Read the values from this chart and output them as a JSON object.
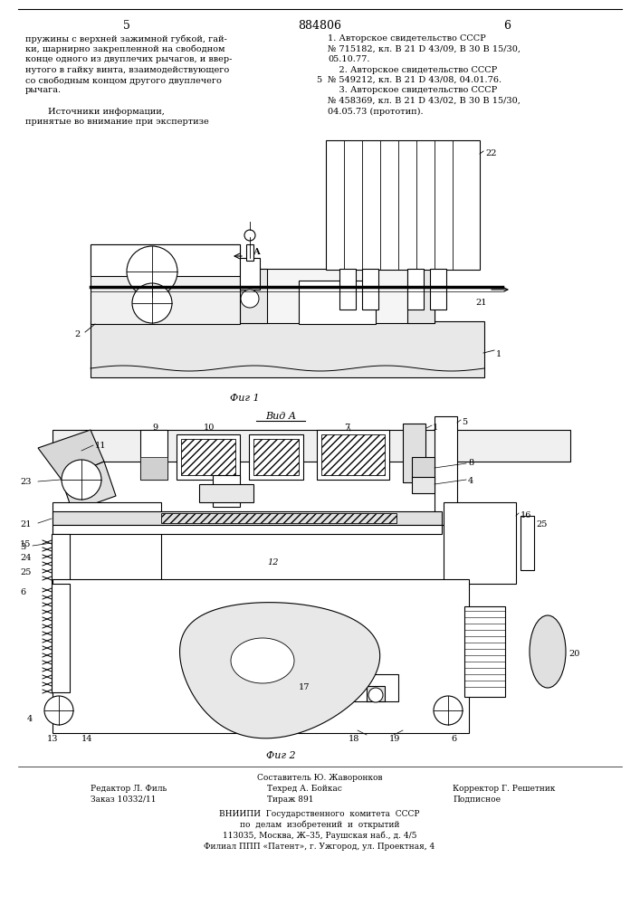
{
  "page_number_left": "5",
  "page_number_right": "6",
  "patent_number": "884806",
  "bg_color": "#ffffff",
  "text_color": "#000000",
  "left_col_text": [
    "пружины с верхней зажимной губкой, гай-",
    "ки, шарнирно закрепленной на свободном",
    "конце одного из двуплечих рычагов, и ввер-",
    "нутого в гайку винта, взаимодействующего",
    "со свободным концом другого двуплечего",
    "рычага.",
    "",
    "        Источники информации,",
    "принятые во внимание при экспертизе"
  ],
  "right_col_text": [
    "1. Авторское свидетельство СССР",
    "№ 715182, кл. В 21 D 43/09, В 30 В 15/30,",
    "05.10.77.",
    "    2. Авторское свидетельство СССР",
    "№ 549212, кл. В 21 D 43/08, 04.01.76.",
    "    3. Авторское свидетельство СССР",
    "№ 458369, кл. В 21 D 43/02, В 30 В 15/30,",
    "04.05.73 (прототип)."
  ],
  "line_number_5": "5",
  "fig1_label": "Фиг 1",
  "fig2_label": "Фиг 2",
  "vid_a_label": "Вид А",
  "footer_line1_left": "Редактор Л. Филь",
  "footer_line1_center": "Техред А. Бойкас",
  "footer_line1_right": "Корректор Г. Решетник",
  "footer_line0_center": "Составитель Ю. Жаворонков",
  "footer_line2_left": "Заказ 10332/11",
  "footer_line2_center": "Тираж 891",
  "footer_line2_right": "Подписное",
  "footer_vniip1": "ВНИИПИ  Государственного  комитета  СССР",
  "footer_vniip2": "по  делам  изобретений  и  открытий",
  "footer_vniip3": "113035, Москва, Ж–35, Раушская наб., д. 4/5",
  "footer_vniip4": "Филиал ППП «Патент», г. Ужгород, ул. Проектная, 4"
}
